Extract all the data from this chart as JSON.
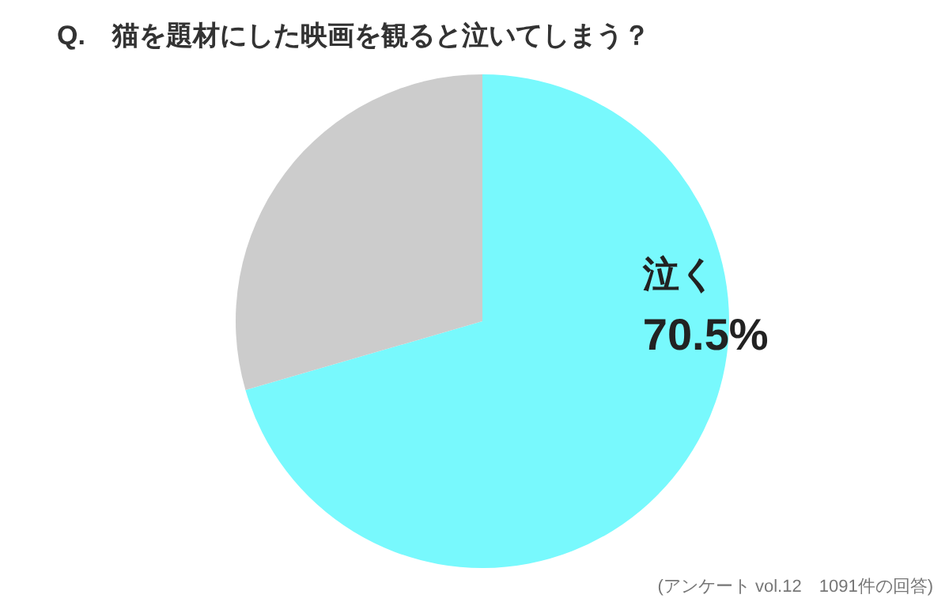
{
  "chart_data": {
    "type": "pie",
    "title": "Q.　猫を題材にした映画を観ると泣いてしまう？",
    "categories": [
      "泣く",
      null
    ],
    "values": [
      70.5,
      29.5
    ],
    "value_labels": [
      "70.5%",
      null
    ],
    "colors": [
      "#78f9fd",
      "#cccccc"
    ],
    "annotations": [
      "(アンケート vol.12　1091件の回答)"
    ]
  }
}
